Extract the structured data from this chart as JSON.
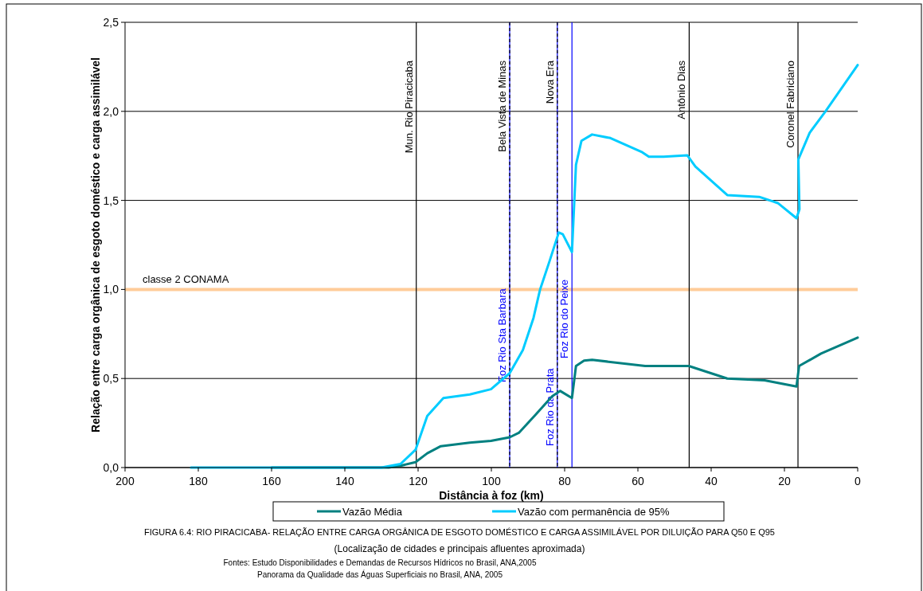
{
  "chart_data": {
    "type": "line",
    "xlabel": "Distância à foz (km)",
    "ylabel": "Relação entre carga orgânica de esgoto doméstico e carga assimilável",
    "title": "FIGURA 6.4: RIO PIRACICABA- RELAÇÃO ENTRE CARGA ORGÂNICA DE ESGOTO DOMÉSTICO E CARGA ASSIMILÁVEL POR DILUIÇÃO PARA Q50 E Q95",
    "subtitle": "(Localização de cidades e principais afluentes aproximada)",
    "annotations": [
      "Fontes: Estudo Disponibilidades e Demandas de Recursos Hídricos no Brasil, ANA,2005",
      "Panorama da Qualidade das Águas Superficiais no Brasil, ANA, 2005"
    ],
    "xlim": [
      200,
      0
    ],
    "xticks": [
      200,
      180,
      160,
      140,
      120,
      100,
      80,
      60,
      40,
      20,
      0
    ],
    "ylim": [
      0,
      2.5
    ],
    "yticks": [
      {
        "value": 0,
        "label": "0,0"
      },
      {
        "value": 0.5,
        "label": "0,5"
      },
      {
        "value": 1,
        "label": "1,0"
      },
      {
        "value": 1.5,
        "label": "1,5"
      },
      {
        "value": 2,
        "label": "2,0"
      },
      {
        "value": 2.5,
        "label": "2,5"
      }
    ],
    "grid": "y",
    "legend": "bottom",
    "line_style": "solid",
    "marker": "none",
    "series": [
      {
        "name": "Vazão Média",
        "color": "#008080",
        "x": [
          160,
          128,
          124.8,
          120.7,
          117.5,
          113.8,
          105.9,
          100.1,
          95,
          92.5,
          87.8,
          83.4,
          81.2,
          78,
          76.9,
          74.7,
          72.5,
          58,
          46.1,
          35.6,
          25.4,
          16.7,
          16,
          10,
          0
        ],
        "values": [
          0,
          0,
          0.01,
          0.03,
          0.08,
          0.12,
          0.14,
          0.15,
          0.17,
          0.195,
          0.3,
          0.4,
          0.43,
          0.39,
          0.57,
          0.6,
          0.605,
          0.57,
          0.57,
          0.5,
          0.49,
          0.455,
          0.57,
          0.64,
          0.73
        ]
      },
      {
        "name": "Vazão com permanência de 95%",
        "color": "#00ccff",
        "x": [
          182,
          130,
          124.8,
          120.7,
          117.5,
          113.1,
          105.9,
          100.1,
          95,
          91.4,
          88.5,
          86.7,
          84.1,
          81.6,
          80.5,
          78,
          76.9,
          75.4,
          72.5,
          67.5,
          58.8,
          57,
          53,
          46.5,
          44.3,
          35.6,
          26.9,
          21.8,
          16.7,
          15.9,
          16.2,
          13.1,
          8.8,
          0
        ],
        "values": [
          0,
          0,
          0.02,
          0.1,
          0.29,
          0.39,
          0.41,
          0.44,
          0.53,
          0.66,
          0.84,
          1,
          1.16,
          1.32,
          1.31,
          1.21,
          1.7,
          1.835,
          1.87,
          1.85,
          1.77,
          1.745,
          1.745,
          1.753,
          1.69,
          1.53,
          1.52,
          1.485,
          1.4,
          1.45,
          1.73,
          1.88,
          2,
          2.26
        ]
      }
    ],
    "ref_lines": [
      {
        "axis": "y",
        "value": 1,
        "label": "classe 2 CONAMA",
        "color": "#ffcc99"
      },
      {
        "axis": "x",
        "value": 120.5,
        "label": "Mun. Rio Piracicaba",
        "color": "#000000"
      },
      {
        "axis": "x",
        "value": 95,
        "label": "Foz Rio Sta Barbara",
        "color": "#0000ff"
      },
      {
        "axis": "x",
        "value": 95,
        "label": "Bela Vista de Minas",
        "color": "#000000",
        "line_style": "dashed"
      },
      {
        "axis": "x",
        "value": 82,
        "label": "Foz Rio da Prata",
        "color": "#0000ff"
      },
      {
        "axis": "x",
        "value": 82,
        "label": "Nova Era",
        "color": "#000000",
        "line_style": "dashed"
      },
      {
        "axis": "x",
        "value": 78,
        "label": "Foz Rio do Peixe",
        "color": "#0000ff"
      },
      {
        "axis": "x",
        "value": 46,
        "label": "Antônio Dias",
        "color": "#000000"
      },
      {
        "axis": "x",
        "value": 16.3,
        "label": "Coronel Fabriciano",
        "color": "#000000"
      }
    ]
  }
}
